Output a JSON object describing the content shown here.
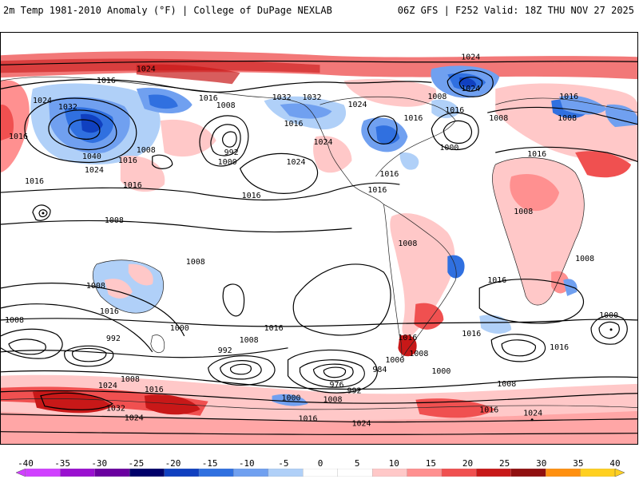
{
  "header": {
    "title_left": "2m Temp 1981-2010 Anomaly (°F) | College of DuPage NEXLAB",
    "title_right": "06Z GFS | F252 Valid: 18Z THU NOV 27 2025"
  },
  "legend": {
    "ticks": [
      "-40",
      "-35",
      "-30",
      "-25",
      "-20",
      "-15",
      "-10",
      "-5",
      "0",
      "5",
      "10",
      "15",
      "20",
      "25",
      "30",
      "35",
      "40"
    ],
    "colors": [
      "#d040ff",
      "#9a10d0",
      "#6a00a0",
      "#00006a",
      "#1040c0",
      "#3070e0",
      "#70a0f0",
      "#b0d0f8",
      "#ffffff",
      "#ffffff",
      "#ffc8c8",
      "#ff9090",
      "#f05050",
      "#c81818",
      "#901010",
      "#ff9010",
      "#ffd020"
    ]
  },
  "map": {
    "isobar_labels": [
      "1016",
      "1024",
      "1024",
      "1016",
      "1032",
      "1016",
      "1008",
      "1032",
      "1032",
      "1024",
      "1024",
      "1008",
      "1016",
      "1008",
      "1024",
      "1016",
      "1016",
      "1016",
      "1024",
      "1008",
      "1016",
      "992",
      "1000",
      "1024",
      "1016",
      "1040",
      "1024",
      "1000",
      "1016",
      "1016",
      "1016",
      "1016",
      "1008",
      "1016",
      "1008",
      "1008",
      "1008",
      "1008",
      "1008",
      "1016",
      "1016",
      "1008",
      "1016",
      "1000",
      "1008",
      "1016",
      "1000",
      "992",
      "992",
      "1016",
      "1008",
      "1000",
      "1008",
      "1016",
      "992",
      "1000",
      "984",
      "976",
      "1008",
      "1024",
      "1016",
      "1008",
      "1000",
      "1008",
      "1016",
      "1032",
      "1024",
      "1016",
      "1024",
      "1024"
    ]
  }
}
